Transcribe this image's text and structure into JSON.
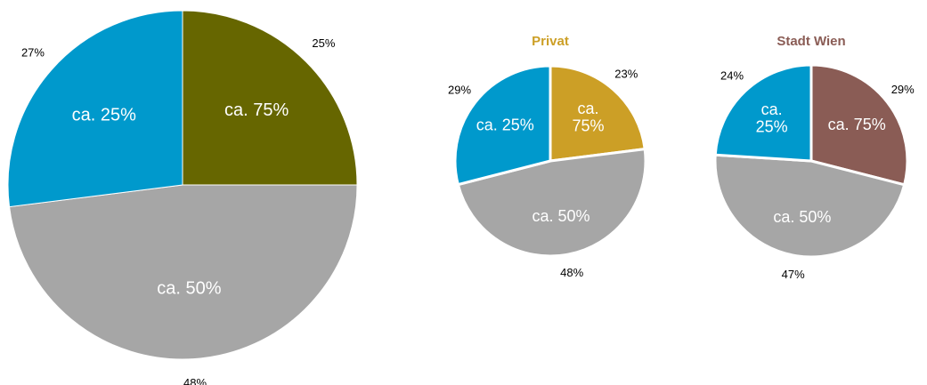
{
  "chart_data": [
    {
      "type": "pie",
      "categories": [
        "ca. 75%",
        "ca. 50%",
        "ca. 25%"
      ],
      "values": [
        25,
        48,
        27
      ],
      "value_labels": [
        "25%",
        "48%",
        "27%"
      ],
      "colors": [
        "#666600",
        "#a6a6a6",
        "#0099cc"
      ]
    },
    {
      "type": "pie",
      "title": "Privat",
      "categories": [
        "ca. 75%",
        "ca. 50%",
        "ca. 25%"
      ],
      "values": [
        23,
        48,
        29
      ],
      "value_labels": [
        "23%",
        "48%",
        "29%"
      ],
      "colors": [
        "#cc9f26",
        "#a6a6a6",
        "#0099cc"
      ]
    },
    {
      "type": "pie",
      "title": "Stadt Wien",
      "categories": [
        "ca. 75%",
        "ca. 50%",
        "ca. 25%"
      ],
      "values": [
        29,
        47,
        24
      ],
      "value_labels": [
        "29%",
        "47%",
        "24%"
      ],
      "colors": [
        "#8a5c55",
        "#a6a6a6",
        "#0099cc"
      ]
    }
  ]
}
